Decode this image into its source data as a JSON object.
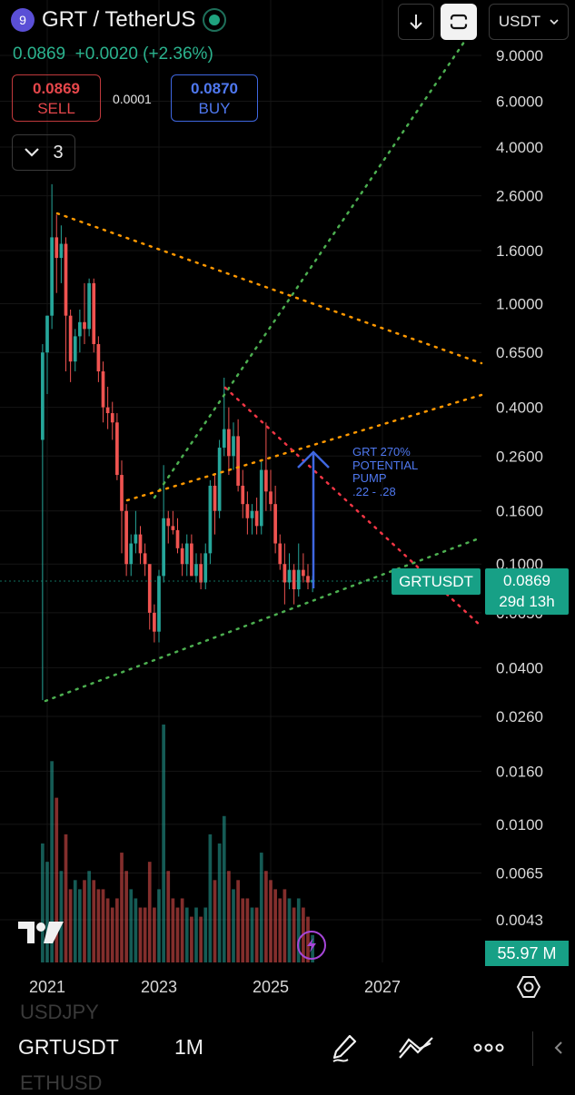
{
  "header": {
    "coin_icon_text": "9",
    "pair_title": "GRT / TetherUS",
    "price_change": "0.0869  +0.0020 (+2.36%)",
    "sell_price": "0.0869",
    "sell_label": "SELL",
    "spread": "0.0001",
    "buy_price": "0.0870",
    "buy_label": "BUY",
    "indicator_count": "3",
    "currency": "USDT"
  },
  "chart_data": {
    "type": "candlestick",
    "scale": "log",
    "y_ticks": [
      "9.0000",
      "6.0000",
      "4.0000",
      "2.6000",
      "1.6000",
      "1.0000",
      "0.6500",
      "0.4000",
      "0.2600",
      "0.1600",
      "0.1000",
      "0.0650",
      "0.0400",
      "0.0260",
      "0.0160",
      "0.0100",
      "0.0065",
      "0.0043"
    ],
    "x_ticks": [
      "2021",
      "2023",
      "2025",
      "2027"
    ],
    "last_price_symbol": "GRTUSDT",
    "last_price": "0.0869",
    "countdown": "29d 13h",
    "volume_label": "55.97 M",
    "annotation": "GRT 270%\nPOTENTIAL\nPUMP\n.22 - .28",
    "colors": {
      "up": "#26a69a",
      "down": "#ef5350",
      "support": "#4caf50",
      "resistance": "#ff9800",
      "downtrend": "#f23645",
      "arrow": "#3f67e0"
    },
    "series": [
      {
        "date": "2020-12",
        "open": 0.3,
        "high": 0.7,
        "low": 0.03,
        "close": 0.65,
        "volume": 13
      },
      {
        "date": "2021-01",
        "open": 0.65,
        "high": 0.9,
        "low": 0.45,
        "close": 0.9,
        "volume": 11
      },
      {
        "date": "2021-02",
        "open": 0.9,
        "high": 2.88,
        "low": 0.8,
        "close": 1.8,
        "volume": 22
      },
      {
        "date": "2021-03",
        "open": 1.8,
        "high": 2.2,
        "low": 1.1,
        "close": 1.5,
        "volume": 18
      },
      {
        "date": "2021-04",
        "open": 1.5,
        "high": 2.0,
        "low": 1.2,
        "close": 1.7,
        "volume": 10
      },
      {
        "date": "2021-05",
        "open": 1.7,
        "high": 1.8,
        "low": 0.55,
        "close": 0.9,
        "volume": 14
      },
      {
        "date": "2021-06",
        "open": 0.9,
        "high": 0.95,
        "low": 0.5,
        "close": 0.6,
        "volume": 8
      },
      {
        "date": "2021-07",
        "open": 0.6,
        "high": 0.8,
        "low": 0.55,
        "close": 0.75,
        "volume": 9
      },
      {
        "date": "2021-08",
        "open": 0.75,
        "high": 0.95,
        "low": 0.65,
        "close": 0.85,
        "volume": 8
      },
      {
        "date": "2021-09",
        "open": 0.85,
        "high": 1.2,
        "low": 0.7,
        "close": 0.8,
        "volume": 9
      },
      {
        "date": "2021-10",
        "open": 0.8,
        "high": 1.25,
        "low": 0.75,
        "close": 1.2,
        "volume": 10
      },
      {
        "date": "2021-11",
        "open": 1.2,
        "high": 1.25,
        "low": 0.65,
        "close": 0.7,
        "volume": 9
      },
      {
        "date": "2021-12",
        "open": 0.7,
        "high": 0.75,
        "low": 0.5,
        "close": 0.55,
        "volume": 8
      },
      {
        "date": "2022-01",
        "open": 0.55,
        "high": 0.6,
        "low": 0.35,
        "close": 0.4,
        "volume": 8
      },
      {
        "date": "2022-02",
        "open": 0.4,
        "high": 0.48,
        "low": 0.33,
        "close": 0.38,
        "volume": 7
      },
      {
        "date": "2022-03",
        "open": 0.38,
        "high": 0.42,
        "low": 0.3,
        "close": 0.35,
        "volume": 6
      },
      {
        "date": "2022-04",
        "open": 0.35,
        "high": 0.38,
        "low": 0.21,
        "close": 0.22,
        "volume": 7
      },
      {
        "date": "2022-05",
        "open": 0.22,
        "high": 0.25,
        "low": 0.11,
        "close": 0.16,
        "volume": 12
      },
      {
        "date": "2022-06",
        "open": 0.16,
        "high": 0.17,
        "low": 0.09,
        "close": 0.1,
        "volume": 10
      },
      {
        "date": "2022-07",
        "open": 0.1,
        "high": 0.13,
        "low": 0.09,
        "close": 0.12,
        "volume": 8
      },
      {
        "date": "2022-08",
        "open": 0.12,
        "high": 0.16,
        "low": 0.11,
        "close": 0.13,
        "volume": 7
      },
      {
        "date": "2022-09",
        "open": 0.13,
        "high": 0.14,
        "low": 0.1,
        "close": 0.11,
        "volume": 6
      },
      {
        "date": "2022-10",
        "open": 0.11,
        "high": 0.12,
        "low": 0.09,
        "close": 0.1,
        "volume": 6
      },
      {
        "date": "2022-11",
        "open": 0.1,
        "high": 0.1,
        "low": 0.056,
        "close": 0.065,
        "volume": 11
      },
      {
        "date": "2022-12",
        "open": 0.065,
        "high": 0.07,
        "low": 0.05,
        "close": 0.055,
        "volume": 6
      },
      {
        "date": "2023-01",
        "open": 0.055,
        "high": 0.095,
        "low": 0.05,
        "close": 0.09,
        "volume": 8
      },
      {
        "date": "2023-02",
        "open": 0.09,
        "high": 0.24,
        "low": 0.085,
        "close": 0.15,
        "volume": 26
      },
      {
        "date": "2023-03",
        "open": 0.15,
        "high": 0.16,
        "low": 0.12,
        "close": 0.14,
        "volume": 10
      },
      {
        "date": "2023-04",
        "open": 0.14,
        "high": 0.16,
        "low": 0.13,
        "close": 0.135,
        "volume": 7
      },
      {
        "date": "2023-05",
        "open": 0.135,
        "high": 0.15,
        "low": 0.11,
        "close": 0.115,
        "volume": 6
      },
      {
        "date": "2023-06",
        "open": 0.115,
        "high": 0.12,
        "low": 0.09,
        "close": 0.1,
        "volume": 7
      },
      {
        "date": "2023-07",
        "open": 0.1,
        "high": 0.13,
        "low": 0.09,
        "close": 0.12,
        "volume": 6
      },
      {
        "date": "2023-08",
        "open": 0.12,
        "high": 0.13,
        "low": 0.09,
        "close": 0.09,
        "volume": 5
      },
      {
        "date": "2023-09",
        "open": 0.09,
        "high": 0.11,
        "low": 0.085,
        "close": 0.1,
        "volume": 6
      },
      {
        "date": "2023-10",
        "open": 0.1,
        "high": 0.11,
        "low": 0.08,
        "close": 0.085,
        "volume": 5
      },
      {
        "date": "2023-11",
        "open": 0.085,
        "high": 0.12,
        "low": 0.08,
        "close": 0.11,
        "volume": 6
      },
      {
        "date": "2023-12",
        "open": 0.11,
        "high": 0.21,
        "low": 0.1,
        "close": 0.2,
        "volume": 14
      },
      {
        "date": "2024-01",
        "open": 0.2,
        "high": 0.22,
        "low": 0.13,
        "close": 0.16,
        "volume": 9
      },
      {
        "date": "2024-02",
        "open": 0.16,
        "high": 0.3,
        "low": 0.15,
        "close": 0.28,
        "volume": 13
      },
      {
        "date": "2024-03",
        "open": 0.28,
        "high": 0.52,
        "low": 0.26,
        "close": 0.33,
        "volume": 16
      },
      {
        "date": "2024-04",
        "open": 0.33,
        "high": 0.4,
        "low": 0.22,
        "close": 0.26,
        "volume": 10
      },
      {
        "date": "2024-05",
        "open": 0.26,
        "high": 0.35,
        "low": 0.23,
        "close": 0.31,
        "volume": 8
      },
      {
        "date": "2024-06",
        "open": 0.31,
        "high": 0.36,
        "low": 0.19,
        "close": 0.2,
        "volume": 9
      },
      {
        "date": "2024-07",
        "open": 0.2,
        "high": 0.23,
        "low": 0.15,
        "close": 0.17,
        "volume": 7
      },
      {
        "date": "2024-08",
        "open": 0.17,
        "high": 0.19,
        "low": 0.13,
        "close": 0.15,
        "volume": 7
      },
      {
        "date": "2024-09",
        "open": 0.15,
        "high": 0.17,
        "low": 0.13,
        "close": 0.16,
        "volume": 6
      },
      {
        "date": "2024-10",
        "open": 0.16,
        "high": 0.18,
        "low": 0.13,
        "close": 0.14,
        "volume": 6
      },
      {
        "date": "2024-11",
        "open": 0.14,
        "high": 0.25,
        "low": 0.13,
        "close": 0.23,
        "volume": 12
      },
      {
        "date": "2024-12",
        "open": 0.23,
        "high": 0.35,
        "low": 0.16,
        "close": 0.19,
        "volume": 10
      },
      {
        "date": "2025-01",
        "open": 0.19,
        "high": 0.23,
        "low": 0.16,
        "close": 0.17,
        "volume": 9
      },
      {
        "date": "2025-02",
        "open": 0.17,
        "high": 0.2,
        "low": 0.11,
        "close": 0.12,
        "volume": 8
      },
      {
        "date": "2025-03",
        "open": 0.12,
        "high": 0.13,
        "low": 0.095,
        "close": 0.1,
        "volume": 7
      },
      {
        "date": "2025-04",
        "open": 0.1,
        "high": 0.12,
        "low": 0.07,
        "close": 0.085,
        "volume": 8
      },
      {
        "date": "2025-05",
        "open": 0.085,
        "high": 0.11,
        "low": 0.08,
        "close": 0.095,
        "volume": 7
      },
      {
        "date": "2025-06",
        "open": 0.095,
        "high": 0.1,
        "low": 0.07,
        "close": 0.08,
        "volume": 6
      },
      {
        "date": "2025-07",
        "open": 0.08,
        "high": 0.12,
        "low": 0.075,
        "close": 0.095,
        "volume": 7
      },
      {
        "date": "2025-08",
        "open": 0.095,
        "high": 0.11,
        "low": 0.085,
        "close": 0.09,
        "volume": 6
      },
      {
        "date": "2025-09",
        "open": 0.09,
        "high": 0.1,
        "low": 0.08,
        "close": 0.085,
        "volume": 5
      },
      {
        "date": "2025-10",
        "open": 0.085,
        "high": 0.09,
        "low": 0.078,
        "close": 0.0869,
        "volume": 3
      }
    ]
  },
  "bottom_bar": {
    "ghost_top": "USDJPY",
    "symbol": "GRTUSDT",
    "interval": "1M",
    "ghost_bottom": "ETHUSD"
  }
}
